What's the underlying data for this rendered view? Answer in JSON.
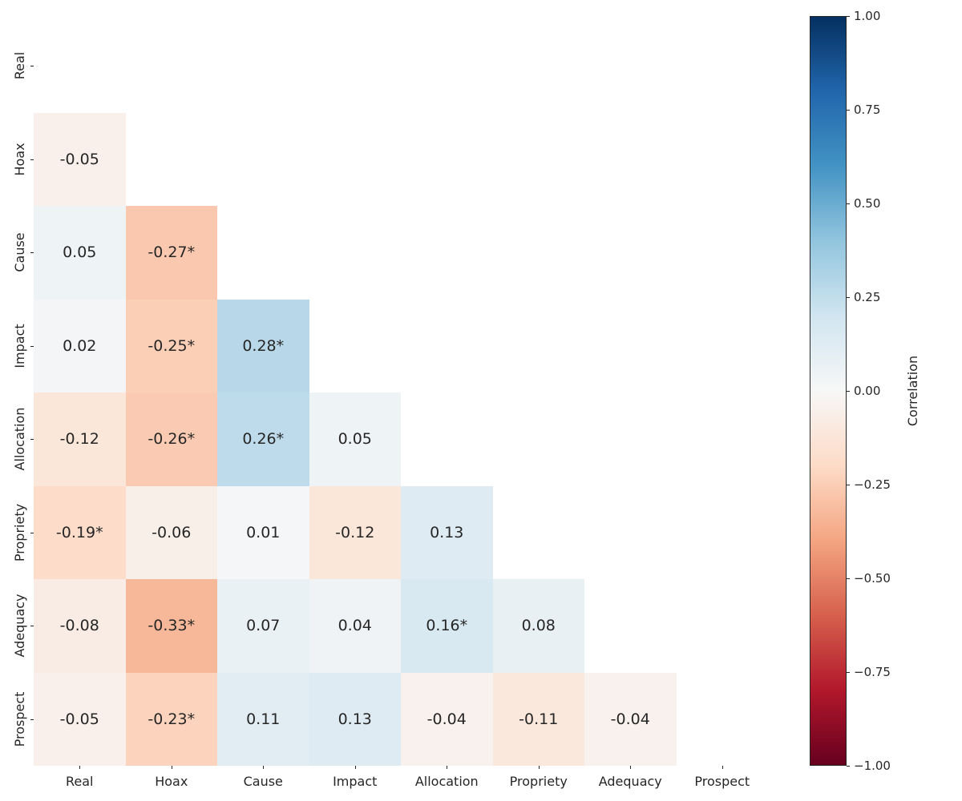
{
  "chart_data": {
    "type": "heatmap",
    "title": "",
    "mask": "upper-triangle-and-diagonal",
    "categories": [
      "Real",
      "Hoax",
      "Cause",
      "Impact",
      "Allocation",
      "Propriety",
      "Adequacy",
      "Prospect"
    ],
    "significance_marker": "*",
    "annotation_color": "#262626",
    "axis_text_color": "#262626",
    "rows": [
      {
        "category": "Real",
        "cells": []
      },
      {
        "category": "Hoax",
        "cells": [
          {
            "x": "Real",
            "value": -0.05,
            "label": "-0.05"
          }
        ]
      },
      {
        "category": "Cause",
        "cells": [
          {
            "x": "Real",
            "value": 0.05,
            "label": "0.05"
          },
          {
            "x": "Hoax",
            "value": -0.27,
            "label": "-0.27*"
          }
        ]
      },
      {
        "category": "Impact",
        "cells": [
          {
            "x": "Real",
            "value": 0.02,
            "label": "0.02"
          },
          {
            "x": "Hoax",
            "value": -0.25,
            "label": "-0.25*"
          },
          {
            "x": "Cause",
            "value": 0.28,
            "label": "0.28*"
          }
        ]
      },
      {
        "category": "Allocation",
        "cells": [
          {
            "x": "Real",
            "value": -0.12,
            "label": "-0.12"
          },
          {
            "x": "Hoax",
            "value": -0.26,
            "label": "-0.26*"
          },
          {
            "x": "Cause",
            "value": 0.26,
            "label": "0.26*"
          },
          {
            "x": "Impact",
            "value": 0.05,
            "label": "0.05"
          }
        ]
      },
      {
        "category": "Propriety",
        "cells": [
          {
            "x": "Real",
            "value": -0.19,
            "label": "-0.19*"
          },
          {
            "x": "Hoax",
            "value": -0.06,
            "label": "-0.06"
          },
          {
            "x": "Cause",
            "value": 0.01,
            "label": "0.01"
          },
          {
            "x": "Impact",
            "value": -0.12,
            "label": "-0.12"
          },
          {
            "x": "Allocation",
            "value": 0.13,
            "label": "0.13"
          }
        ]
      },
      {
        "category": "Adequacy",
        "cells": [
          {
            "x": "Real",
            "value": -0.08,
            "label": "-0.08"
          },
          {
            "x": "Hoax",
            "value": -0.33,
            "label": "-0.33*"
          },
          {
            "x": "Cause",
            "value": 0.07,
            "label": "0.07"
          },
          {
            "x": "Impact",
            "value": 0.04,
            "label": "0.04"
          },
          {
            "x": "Allocation",
            "value": 0.16,
            "label": "0.16*"
          },
          {
            "x": "Propriety",
            "value": 0.08,
            "label": "0.08"
          }
        ]
      },
      {
        "category": "Prospect",
        "cells": [
          {
            "x": "Real",
            "value": -0.05,
            "label": "-0.05"
          },
          {
            "x": "Hoax",
            "value": -0.23,
            "label": "-0.23*"
          },
          {
            "x": "Cause",
            "value": 0.11,
            "label": "0.11"
          },
          {
            "x": "Impact",
            "value": 0.13,
            "label": "0.13"
          },
          {
            "x": "Allocation",
            "value": -0.04,
            "label": "-0.04"
          },
          {
            "x": "Propriety",
            "value": -0.11,
            "label": "-0.11"
          },
          {
            "x": "Adequacy",
            "value": -0.04,
            "label": "-0.04"
          }
        ]
      }
    ],
    "colorbar": {
      "label": "Correlation",
      "min": -1,
      "max": 1,
      "ticks": [
        {
          "value": 1.0,
          "label": "1.00"
        },
        {
          "value": 0.75,
          "label": "0.75"
        },
        {
          "value": 0.5,
          "label": "0.50"
        },
        {
          "value": 0.25,
          "label": "0.25"
        },
        {
          "value": 0.0,
          "label": "0.00"
        },
        {
          "value": -0.25,
          "label": "−0.25"
        },
        {
          "value": -0.5,
          "label": "−0.50"
        },
        {
          "value": -0.75,
          "label": "−0.75"
        },
        {
          "value": -1.0,
          "label": "−1.00"
        }
      ]
    },
    "colormap": {
      "name": "RdBu",
      "stops": [
        {
          "value": -1.0,
          "color": "#67001f"
        },
        {
          "value": -0.8,
          "color": "#b2182b"
        },
        {
          "value": -0.6,
          "color": "#d6604d"
        },
        {
          "value": -0.4,
          "color": "#f4a582"
        },
        {
          "value": -0.2,
          "color": "#fddbc7"
        },
        {
          "value": 0.0,
          "color": "#f7f7f7"
        },
        {
          "value": 0.2,
          "color": "#d1e5f0"
        },
        {
          "value": 0.4,
          "color": "#92c5de"
        },
        {
          "value": 0.6,
          "color": "#4393c4"
        },
        {
          "value": 0.8,
          "color": "#2166ac"
        },
        {
          "value": 1.0,
          "color": "#053061"
        }
      ]
    }
  }
}
